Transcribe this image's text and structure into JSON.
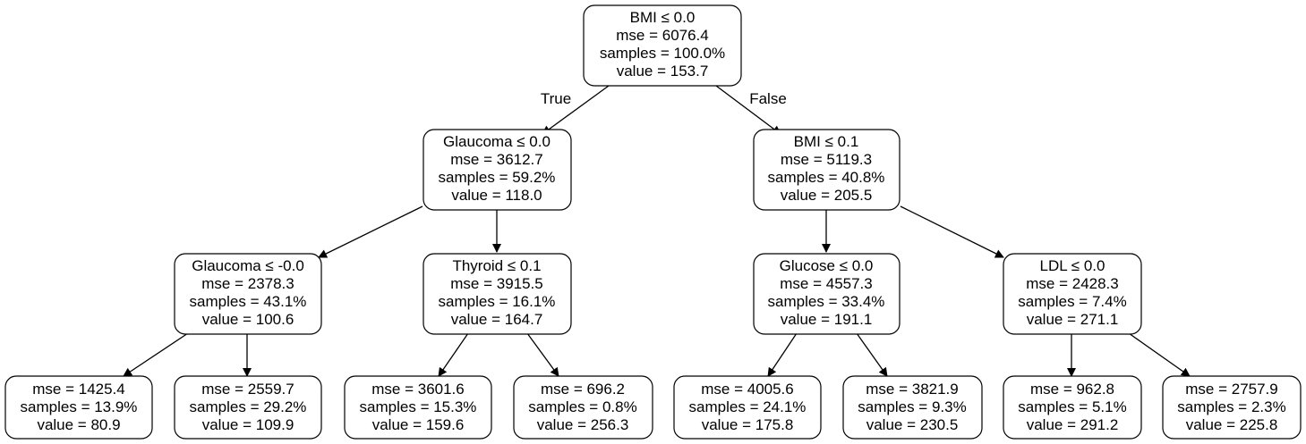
{
  "tree": {
    "edge_labels": {
      "true": "True",
      "false": "False"
    },
    "nodes": {
      "root": {
        "lines": [
          "BMI ≤ 0.0",
          "mse = 6076.4",
          "samples = 100.0%",
          "value = 153.7"
        ]
      },
      "n_l": {
        "lines": [
          "Glaucoma ≤ 0.0",
          "mse = 3612.7",
          "samples = 59.2%",
          "value = 118.0"
        ]
      },
      "n_r": {
        "lines": [
          "BMI ≤ 0.1",
          "mse = 5119.3",
          "samples = 40.8%",
          "value = 205.5"
        ]
      },
      "n_ll": {
        "lines": [
          "Glaucoma ≤ -0.0",
          "mse = 2378.3",
          "samples = 43.1%",
          "value = 100.6"
        ]
      },
      "n_lr": {
        "lines": [
          "Thyroid ≤ 0.1",
          "mse = 3915.5",
          "samples = 16.1%",
          "value = 164.7"
        ]
      },
      "n_rl": {
        "lines": [
          "Glucose ≤ 0.0",
          "mse = 4557.3",
          "samples = 33.4%",
          "value = 191.1"
        ]
      },
      "n_rr": {
        "lines": [
          "LDL ≤ 0.0",
          "mse = 2428.3",
          "samples = 7.4%",
          "value = 271.1"
        ]
      },
      "n_lll": {
        "lines": [
          "mse = 1425.4",
          "samples = 13.9%",
          "value = 80.9"
        ]
      },
      "n_llr": {
        "lines": [
          "mse = 2559.7",
          "samples = 29.2%",
          "value = 109.9"
        ]
      },
      "n_lrl": {
        "lines": [
          "mse = 3601.6",
          "samples = 15.3%",
          "value = 159.6"
        ]
      },
      "n_lrr": {
        "lines": [
          "mse = 696.2",
          "samples = 0.8%",
          "value = 256.3"
        ]
      },
      "n_rll": {
        "lines": [
          "mse = 4005.6",
          "samples = 24.1%",
          "value = 175.8"
        ]
      },
      "n_rlr": {
        "lines": [
          "mse = 3821.9",
          "samples = 9.3%",
          "value = 230.5"
        ]
      },
      "n_rrl": {
        "lines": [
          "mse = 962.8",
          "samples = 5.1%",
          "value = 291.2"
        ]
      },
      "n_rrr": {
        "lines": [
          "mse = 2757.9",
          "samples = 2.3%",
          "value = 225.8"
        ]
      }
    }
  }
}
